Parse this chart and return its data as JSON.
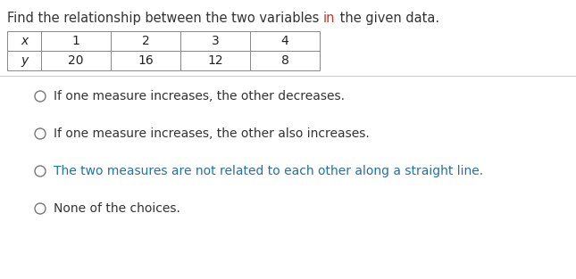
{
  "title_parts": [
    {
      "text": "Find the relationship between the two variables ",
      "color": "#333333"
    },
    {
      "text": "in",
      "color": "#c0392b"
    },
    {
      "text": " the given data.",
      "color": "#333333"
    }
  ],
  "table_x_label": "x",
  "table_y_label": "y",
  "table_x_values": [
    "1",
    "2",
    "3",
    "4"
  ],
  "table_y_values": [
    "20",
    "16",
    "12",
    "8"
  ],
  "option_texts": [
    "If one measure increases, the other decreases.",
    "If one measure increases, the other also increases.",
    "The two measures are not related to each other along a straight line.",
    "None of the choices."
  ],
  "option_colors": [
    "#333333",
    "#333333",
    "#2471a3",
    "#333333"
  ],
  "background_color": "#ffffff",
  "separator_line_color": "#cccccc"
}
